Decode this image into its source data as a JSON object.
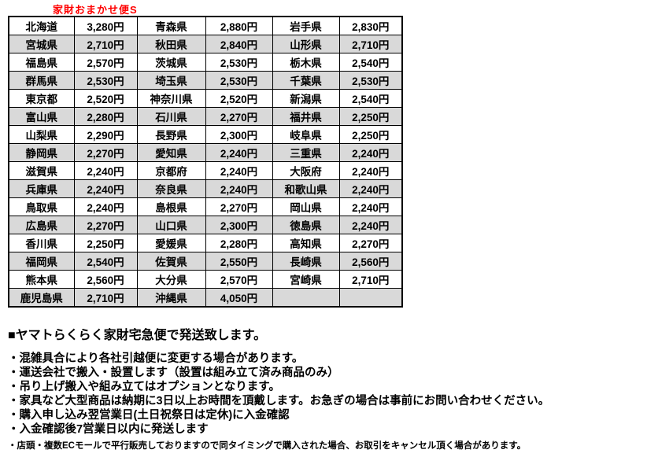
{
  "title": "家財おまかせ便S",
  "colors": {
    "title": "#ff0000",
    "stripe": "#d9d9d9",
    "border": "#000000"
  },
  "table": {
    "currency_suffix": "円",
    "rows": [
      [
        {
          "pref": "北海道",
          "price": "3,280円"
        },
        {
          "pref": "青森県",
          "price": "2,880円"
        },
        {
          "pref": "岩手県",
          "price": "2,830円"
        }
      ],
      [
        {
          "pref": "宮城県",
          "price": "2,710円"
        },
        {
          "pref": "秋田県",
          "price": "2,840円"
        },
        {
          "pref": "山形県",
          "price": "2,710円"
        }
      ],
      [
        {
          "pref": "福島県",
          "price": "2,570円"
        },
        {
          "pref": "茨城県",
          "price": "2,530円"
        },
        {
          "pref": "栃木県",
          "price": "2,540円"
        }
      ],
      [
        {
          "pref": "群馬県",
          "price": "2,530円"
        },
        {
          "pref": "埼玉県",
          "price": "2,530円"
        },
        {
          "pref": "千葉県",
          "price": "2,530円"
        }
      ],
      [
        {
          "pref": "東京都",
          "price": "2,520円"
        },
        {
          "pref": "神奈川県",
          "price": "2,520円"
        },
        {
          "pref": "新潟県",
          "price": "2,540円"
        }
      ],
      [
        {
          "pref": "富山県",
          "price": "2,280円"
        },
        {
          "pref": "石川県",
          "price": "2,270円"
        },
        {
          "pref": "福井県",
          "price": "2,250円"
        }
      ],
      [
        {
          "pref": "山梨県",
          "price": "2,290円"
        },
        {
          "pref": "長野県",
          "price": "2,300円"
        },
        {
          "pref": "岐阜県",
          "price": "2,250円"
        }
      ],
      [
        {
          "pref": "静岡県",
          "price": "2,270円"
        },
        {
          "pref": "愛知県",
          "price": "2,240円"
        },
        {
          "pref": "三重県",
          "price": "2,240円"
        }
      ],
      [
        {
          "pref": "滋賀県",
          "price": "2,240円"
        },
        {
          "pref": "京都府",
          "price": "2,240円"
        },
        {
          "pref": "大阪府",
          "price": "2,240円"
        }
      ],
      [
        {
          "pref": "兵庫県",
          "price": "2,240円"
        },
        {
          "pref": "奈良県",
          "price": "2,240円"
        },
        {
          "pref": "和歌山県",
          "price": "2,240円"
        }
      ],
      [
        {
          "pref": "鳥取県",
          "price": "2,240円"
        },
        {
          "pref": "島根県",
          "price": "2,270円"
        },
        {
          "pref": "岡山県",
          "price": "2,240円"
        }
      ],
      [
        {
          "pref": "広島県",
          "price": "2,270円"
        },
        {
          "pref": "山口県",
          "price": "2,300円"
        },
        {
          "pref": "徳島県",
          "price": "2,240円"
        }
      ],
      [
        {
          "pref": "香川県",
          "price": "2,250円"
        },
        {
          "pref": "愛媛県",
          "price": "2,280円"
        },
        {
          "pref": "高知県",
          "price": "2,270円"
        }
      ],
      [
        {
          "pref": "福岡県",
          "price": "2,540円"
        },
        {
          "pref": "佐賀県",
          "price": "2,550円"
        },
        {
          "pref": "長崎県",
          "price": "2,560円"
        }
      ],
      [
        {
          "pref": "熊本県",
          "price": "2,560円"
        },
        {
          "pref": "大分県",
          "price": "2,570円"
        },
        {
          "pref": "宮崎県",
          "price": "2,710円"
        }
      ],
      [
        {
          "pref": "鹿児島県",
          "price": "2,710円"
        },
        {
          "pref": "沖縄県",
          "price": "4,050円"
        },
        {
          "pref": "",
          "price": ""
        }
      ]
    ]
  },
  "notes": {
    "heading": "■ヤマトらくらく家財宅急便で発送致します。",
    "bullets": [
      "・混雑具合により各社引越便に変更する場合があります。",
      "・運送会社で搬入・設置します（設置は組み立て済み商品のみ）",
      "・吊り上げ搬入や組み立てはオプションとなります。",
      "・家具など大型商品は納期に3日以上お時間を頂戴します。お急ぎの場合は事前にお問い合わせください。",
      "・購入申し込み翌営業日(土日祝祭日は定休)に入金確認",
      "・入金確認後7営業日以内に発送します"
    ],
    "footnote": "・店頭・複数ECモールで平行販売しておりますので同タイミングで購入された場合、お取引をキャンセル頂く場合があります。"
  }
}
